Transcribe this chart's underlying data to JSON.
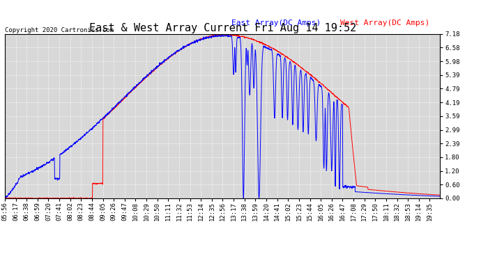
{
  "title": "East & West Array Current Fri Aug 14 19:52",
  "copyright": "Copyright 2020 Cartronics.com",
  "legend_east": "East Array(DC Amps)",
  "legend_west": "West Array(DC Amps)",
  "east_color": "blue",
  "west_color": "red",
  "bg_color": "#ffffff",
  "plot_bg_color": "#d8d8d8",
  "grid_color": "#bbbbbb",
  "y_ticks": [
    0.0,
    0.6,
    1.2,
    1.8,
    2.39,
    2.99,
    3.59,
    4.19,
    4.79,
    5.39,
    5.98,
    6.58,
    7.18
  ],
  "ylim": [
    0.0,
    7.18
  ],
  "x_labels": [
    "05:56",
    "06:17",
    "06:38",
    "06:59",
    "07:20",
    "07:41",
    "08:02",
    "08:23",
    "08:44",
    "09:05",
    "09:26",
    "09:47",
    "10:08",
    "10:29",
    "10:50",
    "11:11",
    "11:32",
    "11:53",
    "12:14",
    "12:35",
    "12:56",
    "13:17",
    "13:38",
    "13:59",
    "14:20",
    "14:41",
    "15:02",
    "15:23",
    "15:44",
    "16:05",
    "16:26",
    "16:47",
    "17:08",
    "17:29",
    "17:50",
    "18:11",
    "18:32",
    "18:53",
    "19:14",
    "19:35"
  ],
  "title_fontsize": 11,
  "axis_fontsize": 6.5,
  "legend_fontsize": 8,
  "copyright_fontsize": 6.5
}
